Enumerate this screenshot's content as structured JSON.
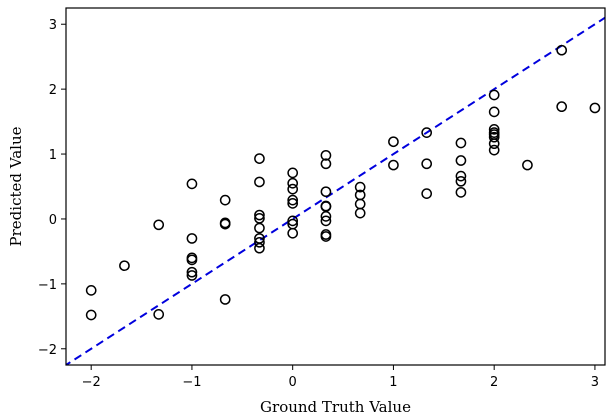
{
  "chart_data": {
    "type": "scatter",
    "xlabel": "Ground Truth Value",
    "ylabel": "Predicted Value",
    "xlim": [
      -2.25,
      3.1
    ],
    "ylim": [
      -2.25,
      3.25
    ],
    "xticks": [
      -2,
      -1,
      0,
      1,
      2,
      3
    ],
    "yticks": [
      -2,
      -1,
      0,
      1,
      2,
      3
    ],
    "xtick_labels": [
      "−2",
      "−1",
      "0",
      "1",
      "2",
      "3"
    ],
    "ytick_labels": [
      "−2",
      "−1",
      "0",
      "1",
      "2",
      "3"
    ],
    "grid": false,
    "marker": "hollow-circle",
    "colors": {
      "points": "#000000",
      "reference_line": "#0000dd"
    },
    "reference_line": {
      "style": "dashed",
      "slope": 1,
      "intercept": 0
    },
    "points": [
      [
        -2,
        -1.1
      ],
      [
        -2,
        -1.48
      ],
      [
        -1.67,
        -0.72
      ],
      [
        -1.33,
        -0.09
      ],
      [
        -1.33,
        -1.47
      ],
      [
        -1,
        0.54
      ],
      [
        -1,
        -0.3
      ],
      [
        -1,
        -0.6
      ],
      [
        -1,
        -0.63
      ],
      [
        -1,
        -0.82
      ],
      [
        -1,
        -0.87
      ],
      [
        -0.67,
        0.29
      ],
      [
        -0.67,
        -0.06
      ],
      [
        -0.67,
        -0.08
      ],
      [
        -0.67,
        -1.24
      ],
      [
        -0.33,
        0.93
      ],
      [
        -0.33,
        0.57
      ],
      [
        -0.33,
        0.06
      ],
      [
        -0.33,
        0.01
      ],
      [
        -0.33,
        -0.14
      ],
      [
        -0.33,
        -0.3
      ],
      [
        -0.33,
        -0.36
      ],
      [
        -0.33,
        -0.45
      ],
      [
        0,
        0.71
      ],
      [
        0,
        0.55
      ],
      [
        0,
        0.46
      ],
      [
        0,
        0.29
      ],
      [
        0,
        0.24
      ],
      [
        0,
        -0.03
      ],
      [
        0,
        -0.08
      ],
      [
        0,
        -0.22
      ],
      [
        0.33,
        0.98
      ],
      [
        0.33,
        0.85
      ],
      [
        0.33,
        0.42
      ],
      [
        0.33,
        0.2
      ],
      [
        0.33,
        0.19
      ],
      [
        0.33,
        0.04
      ],
      [
        0.33,
        -0.03
      ],
      [
        0.33,
        -0.24
      ],
      [
        0.33,
        -0.27
      ],
      [
        0.67,
        0.49
      ],
      [
        0.67,
        0.37
      ],
      [
        0.67,
        0.23
      ],
      [
        0.67,
        0.09
      ],
      [
        1,
        1.19
      ],
      [
        1,
        0.83
      ],
      [
        1.33,
        1.33
      ],
      [
        1.33,
        0.85
      ],
      [
        1.33,
        0.39
      ],
      [
        1.67,
        1.17
      ],
      [
        1.67,
        0.9
      ],
      [
        1.67,
        0.66
      ],
      [
        1.67,
        0.58
      ],
      [
        1.67,
        0.41
      ],
      [
        2,
        1.91
      ],
      [
        2,
        1.65
      ],
      [
        2,
        1.38
      ],
      [
        2,
        1.33
      ],
      [
        2,
        1.3
      ],
      [
        2,
        1.26
      ],
      [
        2,
        1.16
      ],
      [
        2,
        1.06
      ],
      [
        2.33,
        0.83
      ],
      [
        2.67,
        2.6
      ],
      [
        2.67,
        1.73
      ],
      [
        3,
        1.71
      ]
    ]
  }
}
